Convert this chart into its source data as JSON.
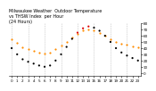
{
  "title": "Milwaukee Weather  Outdoor Temperature\nvs THSW Index  per Hour\n(24 Hours)",
  "background_color": "#ffffff",
  "plot_bg_color": "#ffffff",
  "grid_color": "#b0b0b0",
  "hours": [
    0,
    1,
    2,
    3,
    4,
    5,
    6,
    7,
    8,
    9,
    10,
    11,
    12,
    13,
    14,
    15,
    16,
    17,
    18,
    19,
    20,
    21,
    22,
    23
  ],
  "temp_vals": [
    55,
    48,
    42,
    38,
    35,
    33,
    32,
    33,
    38,
    44,
    50,
    57,
    63,
    68,
    70,
    68,
    65,
    60,
    55,
    50,
    47,
    45,
    43,
    41
  ],
  "thsw_vals": [
    40,
    30,
    22,
    18,
    15,
    12,
    10,
    12,
    20,
    30,
    42,
    55,
    65,
    72,
    75,
    73,
    68,
    60,
    50,
    40,
    33,
    28,
    24,
    20
  ],
  "temp_color": "#ff8c00",
  "thsw_color": "#000000",
  "highlight_color": "#dd0000",
  "highlight_hours_thsw": [
    12,
    13,
    14
  ],
  "highlight_hours_temp": [],
  "ylim_min": -5,
  "ylim_max": 80,
  "ytick_vals": [
    0,
    10,
    20,
    30,
    40,
    50,
    60,
    70,
    80
  ],
  "marker_size": 2.5,
  "dashed_grid_hours": [
    0,
    3,
    6,
    9,
    12,
    15,
    18,
    21
  ],
  "title_fontsize": 3.5,
  "tick_fontsize": 3.0
}
